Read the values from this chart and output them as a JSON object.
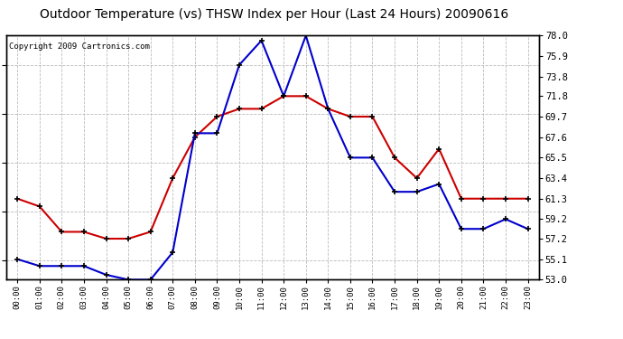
{
  "title": "Outdoor Temperature (vs) THSW Index per Hour (Last 24 Hours) 20090616",
  "copyright": "Copyright 2009 Cartronics.com",
  "hours": [
    "00:00",
    "01:00",
    "02:00",
    "03:00",
    "04:00",
    "05:00",
    "06:00",
    "07:00",
    "08:00",
    "09:00",
    "10:00",
    "11:00",
    "12:00",
    "13:00",
    "14:00",
    "15:00",
    "16:00",
    "17:00",
    "18:00",
    "19:00",
    "20:00",
    "21:00",
    "22:00",
    "23:00"
  ],
  "temp_red": [
    61.3,
    60.5,
    57.9,
    57.9,
    57.2,
    57.2,
    57.9,
    63.4,
    67.6,
    69.7,
    70.5,
    70.5,
    71.8,
    71.8,
    70.5,
    69.7,
    69.7,
    65.5,
    63.4,
    66.4,
    61.3,
    61.3,
    61.3,
    61.3
  ],
  "thsw_blue": [
    55.1,
    54.4,
    54.4,
    54.4,
    53.5,
    53.0,
    53.0,
    55.8,
    68.0,
    68.0,
    75.0,
    77.5,
    71.8,
    78.0,
    70.5,
    65.5,
    65.5,
    62.0,
    62.0,
    62.8,
    58.2,
    58.2,
    59.2,
    58.2
  ],
  "ylim": [
    53.0,
    78.0
  ],
  "yticks": [
    53.0,
    55.1,
    57.2,
    59.2,
    61.3,
    63.4,
    65.5,
    67.6,
    69.7,
    71.8,
    73.8,
    75.9,
    78.0
  ],
  "bg_color": "#ffffff",
  "grid_color": "#bbbbbb",
  "line_red_color": "#cc0000",
  "line_blue_color": "#0000cc",
  "title_fontsize": 10,
  "copyright_fontsize": 6.5
}
